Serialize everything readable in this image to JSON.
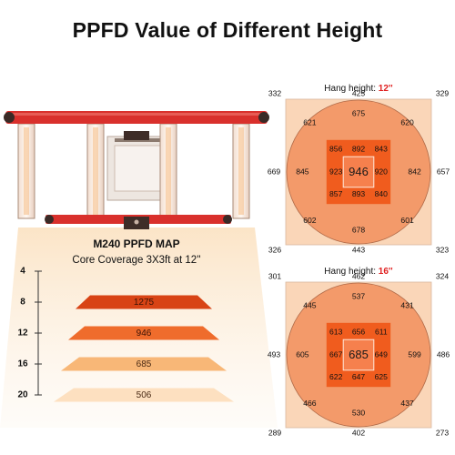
{
  "page": {
    "title": "PPFD Value of Different Height"
  },
  "product": {
    "name": "M240 PPFD MAP",
    "coverage": "Core Coverage 3X3ft at 12''"
  },
  "height_chart": {
    "heights": [
      "4",
      "8",
      "12",
      "16",
      "20"
    ],
    "rows": [
      {
        "height": 8,
        "value": "1275",
        "color": "#d84315"
      },
      {
        "height": 12,
        "value": "946",
        "color": "#ef6c2c"
      },
      {
        "height": 16,
        "value": "685",
        "color": "#f8b777"
      },
      {
        "height": 20,
        "value": "506",
        "color": "#fde0c0"
      }
    ]
  },
  "maps": [
    {
      "prefix": "Hang height: ",
      "height": "12''",
      "center": "946",
      "corners": [
        "332",
        "329",
        "326",
        "323"
      ],
      "edges": [
        "425",
        "669",
        "657",
        "443"
      ],
      "circle": [
        "621",
        "675",
        "620",
        "845",
        "842",
        "602",
        "678",
        "601"
      ],
      "inner": [
        "856",
        "892",
        "843",
        "923",
        "920",
        "857",
        "893",
        "840"
      ]
    },
    {
      "prefix": "Hang height: ",
      "height": "16''",
      "center": "685",
      "corners": [
        "301",
        "324",
        "289",
        "273"
      ],
      "edges": [
        "462",
        "493",
        "486",
        "402"
      ],
      "circle": [
        "445",
        "537",
        "431",
        "605",
        "599",
        "466",
        "530",
        "437"
      ],
      "inner": [
        "613",
        "656",
        "611",
        "667",
        "649",
        "622",
        "647",
        "625"
      ]
    }
  ],
  "colors": {
    "outer_square": "#fad6b8",
    "circle": "#f39a6a",
    "inner_square": "#f05c1e",
    "center_square": "#f6804d",
    "highlight_red": "#e02020",
    "frame_red": "#d9302c"
  }
}
